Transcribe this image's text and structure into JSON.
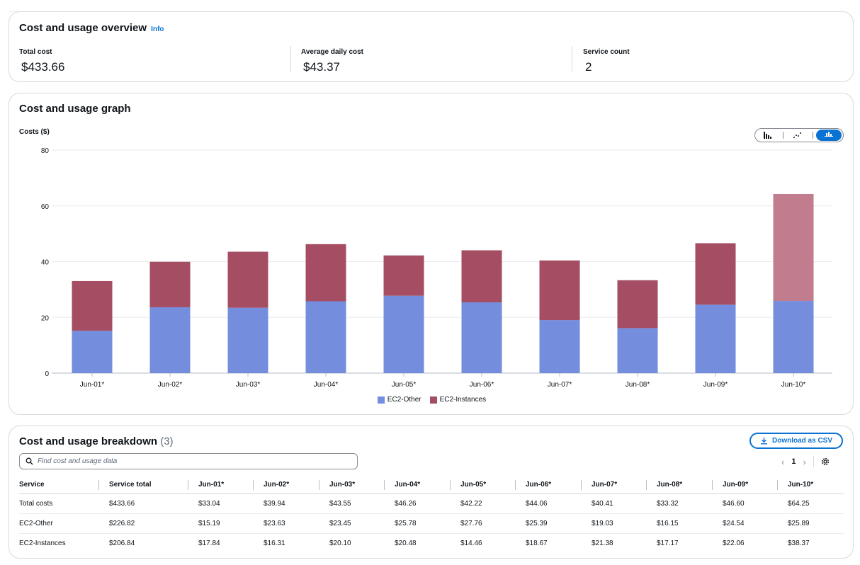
{
  "overview": {
    "title": "Cost and usage overview",
    "info_label": "Info",
    "metrics": [
      {
        "label": "Total cost",
        "value": "$433.66"
      },
      {
        "label": "Average daily cost",
        "value": "$43.37"
      },
      {
        "label": "Service count",
        "value": "2"
      }
    ]
  },
  "graph": {
    "title": "Cost and usage graph",
    "chart_type_options": [
      "bar-chart-icon",
      "line-chart-icon",
      "stacked-bar-chart-icon"
    ],
    "selected_chart_type": "stacked-bar-chart-icon"
  },
  "chart_data": {
    "type": "bar",
    "stacked": true,
    "title": "",
    "ylabel": "Costs ($)",
    "xlabel": "",
    "ylim": [
      0,
      80
    ],
    "yticks": [
      0,
      20,
      40,
      60,
      80
    ],
    "grid": true,
    "legend_position": "bottom",
    "categories": [
      "Jun-01*",
      "Jun-02*",
      "Jun-03*",
      "Jun-04*",
      "Jun-05*",
      "Jun-06*",
      "Jun-07*",
      "Jun-08*",
      "Jun-09*",
      "Jun-10*"
    ],
    "series": [
      {
        "name": "EC2-Other",
        "color": "#758ddd",
        "values": [
          15.19,
          23.63,
          23.45,
          25.78,
          27.76,
          25.39,
          19.03,
          16.15,
          24.54,
          25.89
        ]
      },
      {
        "name": "EC2-Instances",
        "color": "#a54d63",
        "values": [
          17.84,
          16.31,
          20.1,
          20.48,
          14.46,
          18.67,
          21.38,
          17.17,
          22.06,
          38.37
        ]
      }
    ],
    "highlighted_category": "Jun-10*",
    "highlight_color": "#c17d8e"
  },
  "breakdown": {
    "title": "Cost and usage breakdown",
    "count": "(3)",
    "download_label": "Download as CSV",
    "search_placeholder": "Find cost and usage data",
    "current_page": "1",
    "columns": [
      "Service",
      "Service total",
      "Jun-01*",
      "Jun-02*",
      "Jun-03*",
      "Jun-04*",
      "Jun-05*",
      "Jun-06*",
      "Jun-07*",
      "Jun-08*",
      "Jun-09*",
      "Jun-10*"
    ],
    "rows": [
      [
        "Total costs",
        "$433.66",
        "$33.04",
        "$39.94",
        "$43.55",
        "$46.26",
        "$42.22",
        "$44.06",
        "$40.41",
        "$33.32",
        "$46.60",
        "$64.25"
      ],
      [
        "EC2-Other",
        "$226.82",
        "$15.19",
        "$23.63",
        "$23.45",
        "$25.78",
        "$27.76",
        "$25.39",
        "$19.03",
        "$16.15",
        "$24.54",
        "$25.89"
      ],
      [
        "EC2-Instances",
        "$206.84",
        "$17.84",
        "$16.31",
        "$20.10",
        "$20.48",
        "$14.46",
        "$18.67",
        "$21.38",
        "$17.17",
        "$22.06",
        "$38.37"
      ]
    ]
  }
}
